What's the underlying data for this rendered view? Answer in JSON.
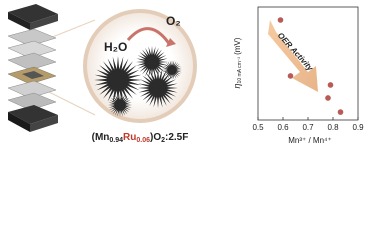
{
  "chart_data": {
    "type": "scatter",
    "x": [
      0.59,
      0.63,
      0.78,
      0.79,
      0.83
    ],
    "values": [
      554,
      356,
      278,
      324,
      228
    ],
    "color": "#b85a55",
    "xlim": [
      0.5,
      0.9
    ],
    "xticks": [
      0.5,
      0.6,
      0.7,
      0.8,
      0.9
    ],
    "ylim": [
      200,
      600
    ],
    "xlabel": "Mn³⁺ / Mn⁴⁺",
    "ylabel": {
      "symbol": "η",
      "subscript": "10 mA cm⁻²",
      "unit": "(mV)"
    },
    "annotation": "OER Activity"
  },
  "illustration": {
    "labels": [
      "H₂O",
      "O₂"
    ],
    "formula": [
      "(Mn",
      "0.94",
      "Ru",
      "0.06",
      ")O",
      "2",
      ":2.5F"
    ]
  }
}
